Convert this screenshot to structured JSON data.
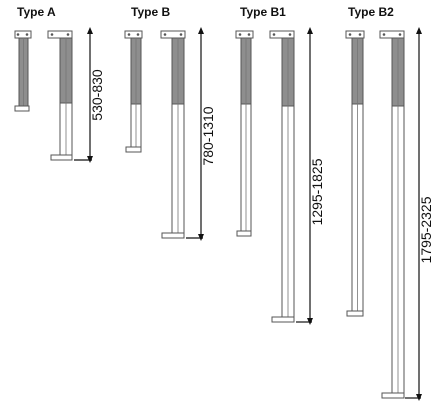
{
  "diagram": {
    "types": [
      {
        "id": "a",
        "label": "Type A",
        "dimension": "530-830"
      },
      {
        "id": "b",
        "label": "Type B",
        "dimension": "780-1310"
      },
      {
        "id": "b1",
        "label": "Type B1",
        "dimension": "1295-1825"
      },
      {
        "id": "b2",
        "label": "Type B2",
        "dimension": "1795-2325"
      }
    ],
    "colors": {
      "shaded": "#8e8e8e",
      "outline": "#555555",
      "text": "#111111",
      "background": "#ffffff"
    }
  }
}
